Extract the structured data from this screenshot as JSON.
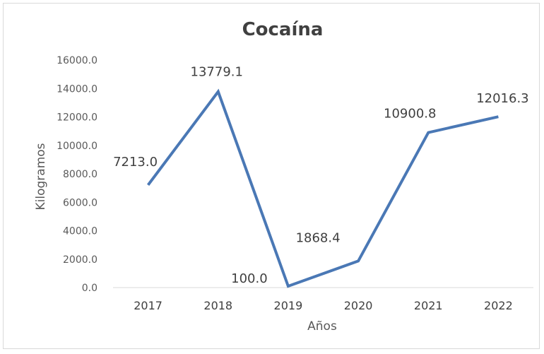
{
  "chart_data": {
    "type": "line",
    "title": "Cocaína",
    "xlabel": "Años",
    "ylabel": "Kilogramos",
    "categories": [
      "2017",
      "2018",
      "2019",
      "2020",
      "2021",
      "2022"
    ],
    "series": [
      {
        "values": [
          7213.0,
          13779.1,
          100.0,
          1868.4,
          10900.8,
          12016.3
        ],
        "labels": [
          "7213.0",
          "13779.1",
          "100.0",
          "1868.4",
          "10900.8",
          "12016.3"
        ],
        "color": "#4a78b5"
      }
    ],
    "ylim": [
      0,
      16000
    ],
    "yticks": [
      "0.0",
      "2000.0",
      "4000.0",
      "6000.0",
      "8000.0",
      "10000.0",
      "12000.0",
      "14000.0",
      "16000.0"
    ],
    "grid": false,
    "legend": "none"
  }
}
